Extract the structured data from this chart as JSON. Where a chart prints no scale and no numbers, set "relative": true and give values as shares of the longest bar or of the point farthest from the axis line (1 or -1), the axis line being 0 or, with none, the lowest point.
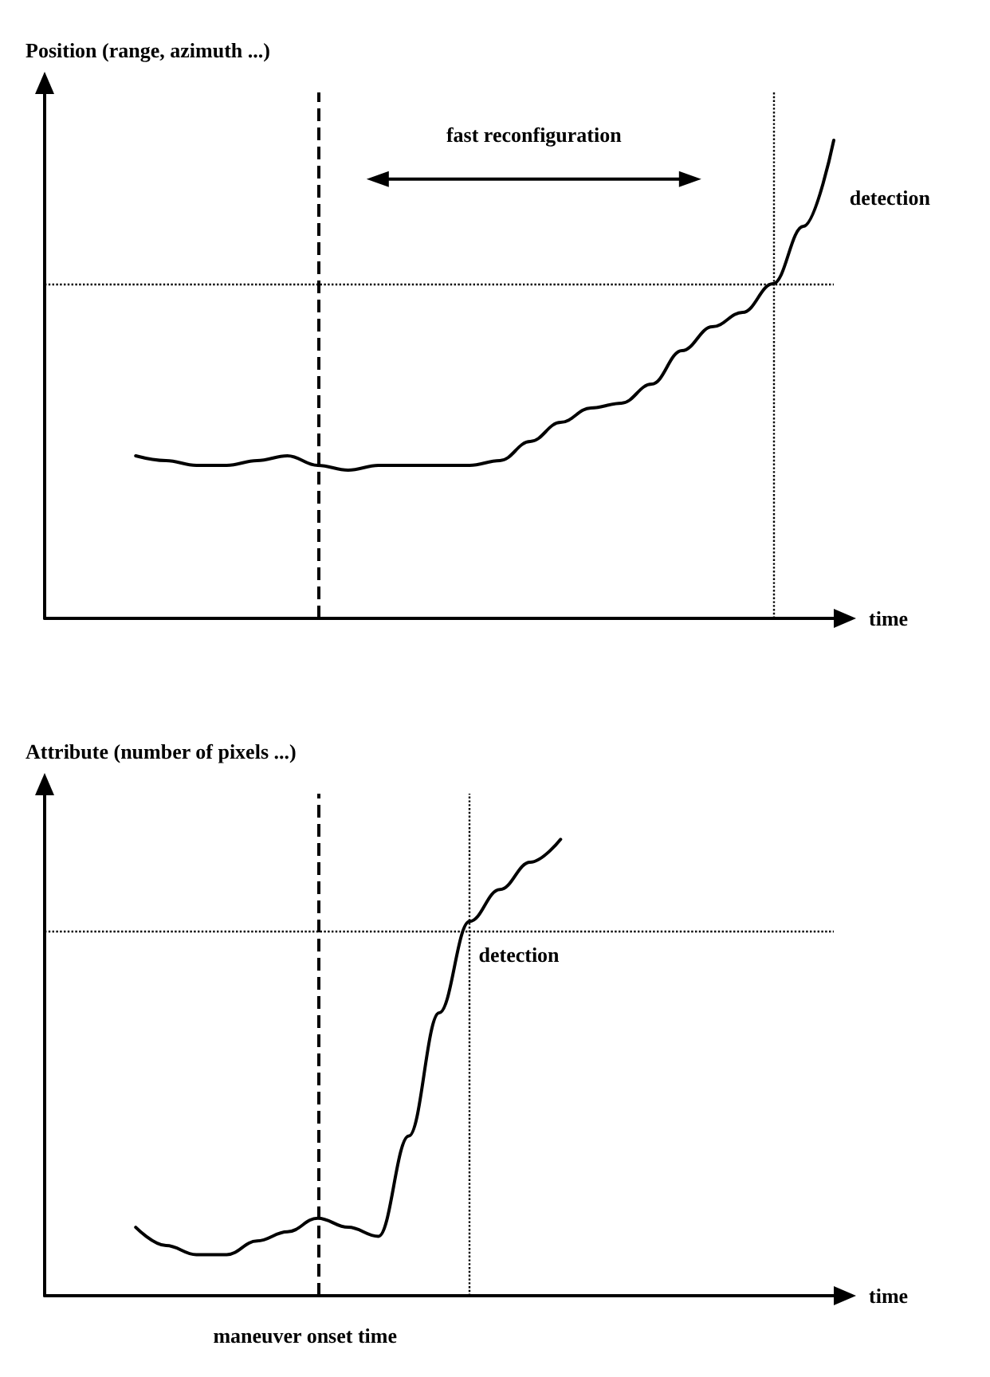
{
  "chart_data": [
    {
      "type": "line",
      "ylabel": "Position (range, azimuth ...)",
      "xlabel": "time",
      "relative": true,
      "grid": false,
      "marker": "none",
      "line_style": "solid",
      "categories": [
        null,
        null,
        null,
        null,
        null,
        null,
        null,
        null,
        null,
        null,
        null,
        null,
        null,
        null,
        null,
        null,
        null,
        null,
        null,
        null,
        null,
        null,
        null,
        null,
        null,
        null,
        null
      ],
      "series": [
        {
          "color": "#000000",
          "values": [
            null,
            null,
            null,
            0.34,
            0.33,
            0.32,
            0.32,
            0.33,
            0.34,
            0.32,
            0.31,
            0.32,
            0.32,
            0.32,
            0.32,
            0.33,
            0.37,
            0.41,
            0.44,
            0.45,
            0.49,
            0.56,
            0.61,
            0.64,
            0.7,
            0.82,
            1.0
          ]
        }
      ],
      "ref_lines": [
        {
          "axis": "y",
          "value": 0.7,
          "label": null,
          "color": "#000000",
          "line_style": "dotted"
        }
      ],
      "annotations": [
        "fast reconfiguration",
        "detection"
      ]
    },
    {
      "type": "line",
      "ylabel": "Attribute (number of pixels ...)",
      "xlabel": "time",
      "relative": true,
      "grid": false,
      "marker": "none",
      "line_style": "solid",
      "categories": [
        null,
        null,
        null,
        null,
        null,
        null,
        null,
        null,
        null,
        null,
        null,
        null,
        null,
        null,
        null,
        null,
        null,
        null,
        null,
        null,
        null,
        null,
        null,
        null,
        null,
        null,
        null
      ],
      "series": [
        {
          "color": "#000000",
          "values": [
            null,
            null,
            null,
            0.15,
            0.11,
            0.09,
            0.09,
            0.12,
            0.14,
            0.17,
            0.15,
            0.13,
            0.35,
            0.62,
            0.82,
            0.89,
            0.95,
            1.0,
            null,
            null,
            null,
            null,
            null,
            null,
            null,
            null,
            null
          ]
        }
      ],
      "ref_lines": [
        {
          "axis": "y",
          "value": 0.8,
          "label": null,
          "color": "#000000",
          "line_style": "dotted"
        }
      ],
      "annotations": [
        "detection",
        "maneuver onset time"
      ]
    }
  ]
}
